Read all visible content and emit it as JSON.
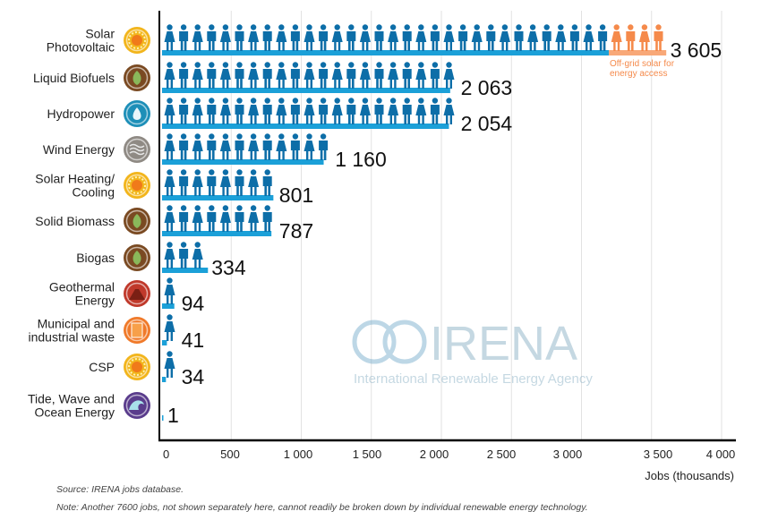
{
  "chart_data": {
    "type": "bar",
    "orientation": "horizontal",
    "categories": [
      "Solar Photovoltaic",
      "Liquid Biofuels",
      "Hydropower",
      "Wind Energy",
      "Solar Heating/ Cooling",
      "Solid Biomass",
      "Biogas",
      "Geothermal Energy",
      "Municipal and industrial waste",
      "CSP",
      "Tide, Wave and Ocean Energy"
    ],
    "category_lines": [
      [
        "Solar",
        "Photovoltaic"
      ],
      [
        "Liquid Biofuels"
      ],
      [
        "Hydropower"
      ],
      [
        "Wind Energy"
      ],
      [
        "Solar Heating/",
        "Cooling"
      ],
      [
        "Solid Biomass"
      ],
      [
        "Biogas"
      ],
      [
        "Geothermal",
        "Energy"
      ],
      [
        "Municipal and",
        "industrial waste"
      ],
      [
        "CSP"
      ],
      [
        "Tide, Wave and",
        "Ocean Energy"
      ]
    ],
    "values": [
      3605,
      2063,
      2054,
      1160,
      801,
      787,
      334,
      94,
      41,
      34,
      1
    ],
    "value_labels": [
      "3 605",
      "2 063",
      "2 054",
      "1 160",
      "801",
      "787",
      "334",
      "94",
      "41",
      "34",
      "1"
    ],
    "icons": [
      "sun-icon",
      "leaf-icon",
      "water-drop-icon",
      "wind-icon",
      "sun-icon",
      "leaf-icon",
      "leaf-icon",
      "volcano-icon",
      "waste-bin-icon",
      "sun-icon",
      "wave-icon"
    ],
    "icon_colors": [
      "#f2b51c",
      "#7a4a22",
      "#1d8fb8",
      "#8f8a84",
      "#f2b51c",
      "#7a4a22",
      "#7a4a22",
      "#c0392b",
      "#f07a2a",
      "#f2b51c",
      "#5a3c8c"
    ],
    "offgrid": {
      "category": "Solar Photovoltaic",
      "value": 410,
      "label": "Off-grid solar for energy access",
      "label_lines": [
        "Off-grid solar for",
        "energy access"
      ],
      "color": "#f58a4b"
    },
    "xlim": [
      0,
      4000
    ],
    "xticks": [
      0,
      500,
      1000,
      1500,
      2000,
      2500,
      3000,
      3500,
      4000
    ],
    "xtick_labels": [
      "0",
      "500",
      "1 000",
      "1 500",
      "2 000",
      "2 500",
      "3 000",
      "3 500",
      "4 000"
    ],
    "xlabel": "Jobs (thousands)",
    "grid": true,
    "colors": {
      "bar": "#1ba0d8",
      "figure": "#0d6ea8",
      "offgrid_bar": "#f8a878"
    }
  },
  "watermark": {
    "name": "IRENA",
    "subtitle": "International Renewable Energy Agency"
  },
  "footer": {
    "source": "Source: IRENA jobs database.",
    "note": "Note: Another 7600 jobs, not shown separately here, cannot readily be broken down by individual renewable energy technology."
  }
}
